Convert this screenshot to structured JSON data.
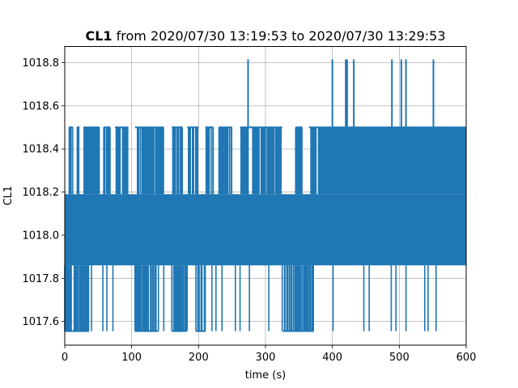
{
  "chart_data": {
    "type": "line",
    "title": {
      "bold": "CL1",
      "rest": " from 2020/07/30 13:19:53 to 2020/07/30 13:29:53"
    },
    "xlabel": "time (s)",
    "ylabel": "CL1",
    "xlim": [
      0,
      600
    ],
    "ylim": [
      1017.49,
      1018.875
    ],
    "xticks": [
      0,
      100,
      200,
      300,
      400,
      500,
      600
    ],
    "xtick_labels": [
      "0",
      "100",
      "200",
      "300",
      "400",
      "500",
      "600"
    ],
    "yticks": [
      1017.6,
      1017.8,
      1018.0,
      1018.2,
      1018.4,
      1018.6,
      1018.8
    ],
    "ytick_labels": [
      "1017.6",
      "1017.8",
      "1018.0",
      "1018.2",
      "1018.4",
      "1018.6",
      "1018.8"
    ],
    "grid": true,
    "color": "#1f77b4",
    "series": [
      {
        "core_band": [
          1017.86,
          1018.19
        ],
        "levels": [
          1017.555,
          1017.86,
          1018.19,
          1018.5,
          1018.815
        ],
        "spikes_high": [
          274,
          400,
          420,
          422,
          432,
          489,
          503,
          510,
          551
        ],
        "spikes_low": [
          0,
          3,
          40,
          57,
          63,
          72,
          105,
          118,
          125,
          140,
          148,
          160,
          170,
          176,
          183,
          196,
          210,
          220,
          226,
          235,
          255,
          262,
          276,
          305,
          325,
          329,
          333,
          342,
          348,
          357,
          361,
          366,
          370,
          401,
          447,
          455,
          488,
          495,
          510,
          538,
          543,
          555
        ],
        "dense_upper_start": 385,
        "gaps_upper_before_385": [
          [
            12,
            18
          ],
          [
            22,
            28
          ],
          [
            52,
            58
          ],
          [
            68,
            75
          ],
          [
            95,
            105
          ],
          [
            148,
            160
          ],
          [
            176,
            183
          ],
          [
            200,
            210
          ],
          [
            222,
            230
          ],
          [
            250,
            262
          ],
          [
            325,
            345
          ],
          [
            355,
            365
          ]
        ]
      }
    ]
  }
}
